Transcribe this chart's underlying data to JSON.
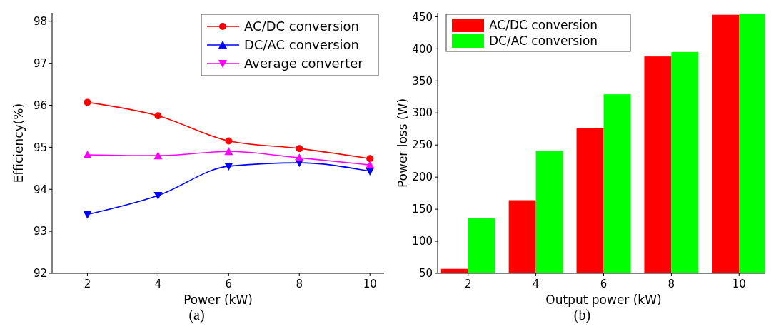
{
  "chart_data": [
    {
      "type": "line",
      "xlabel": "Power (kW)",
      "ylabel": "Efficiency(%)",
      "annotations": [
        "(a)"
      ],
      "x": [
        2,
        4,
        6,
        8,
        10
      ],
      "xlim": [
        1,
        10.4
      ],
      "xticks": [
        2,
        4,
        6,
        8,
        10
      ],
      "ylim": [
        92,
        98.2
      ],
      "yticks": [
        92,
        93,
        94,
        95,
        96,
        97,
        98
      ],
      "legend": "top right",
      "grid": false,
      "series": [
        {
          "name": "AC/DC conversion",
          "color": "#ff0000",
          "marker": "circle",
          "values": [
            96.07,
            95.75,
            95.15,
            94.97,
            94.73
          ]
        },
        {
          "name": "DC/AC conversion",
          "color": "#0000ff",
          "marker": "triangle",
          "values": [
            93.4,
            93.85,
            94.55,
            94.63,
            94.43
          ]
        },
        {
          "name": "Average converter",
          "color": "#ff00ff",
          "marker": "triangle",
          "values": [
            94.82,
            94.8,
            94.9,
            94.75,
            94.58
          ]
        }
      ]
    },
    {
      "type": "bar",
      "xlabel": "Output power (kW)",
      "ylabel": "Power loss (W)",
      "annotations": [
        "(b)"
      ],
      "categories": [
        "2",
        "4",
        "6",
        "8",
        "10"
      ],
      "ylim": [
        50,
        456
      ],
      "yticks": [
        50,
        100,
        150,
        200,
        250,
        300,
        350,
        400,
        450
      ],
      "legend": "top left",
      "grid": false,
      "series": [
        {
          "name": "AC/DC conversion",
          "color": "#ff0000",
          "values": [
            57,
            164,
            276,
            388,
            453
          ]
        },
        {
          "name": "DC/AC conversion",
          "color": "#00ff00",
          "values": [
            136,
            241,
            329,
            395,
            455
          ]
        }
      ]
    }
  ]
}
